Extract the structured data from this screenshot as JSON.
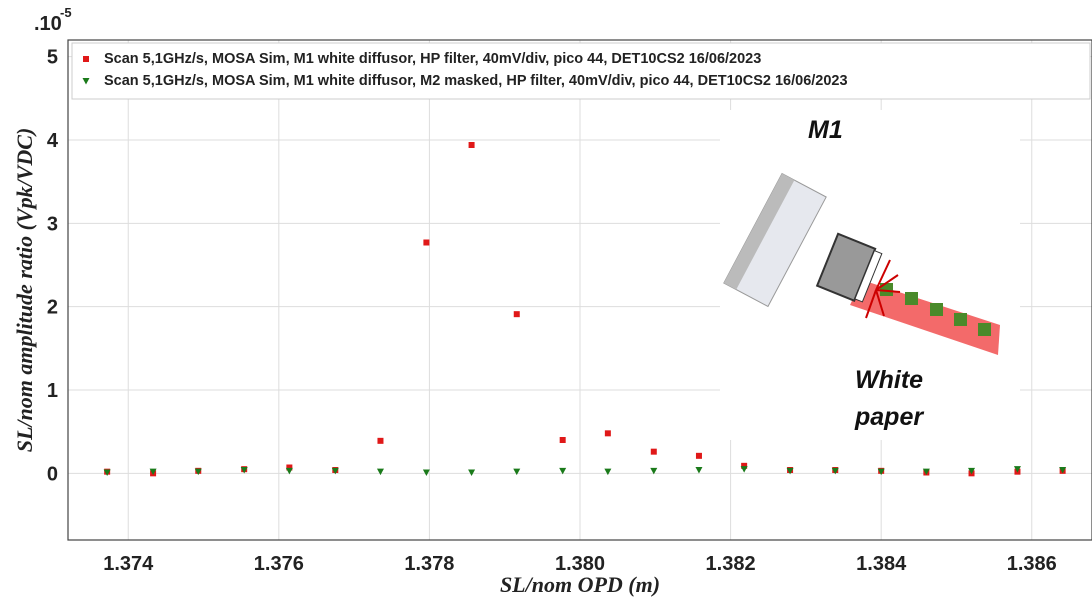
{
  "chart_data": {
    "type": "scatter",
    "xlabel": "SL/nom OPD (m)",
    "ylabel": "SL/nom amplitude ratio (Vpk/VDC)",
    "y_scale_label": ".10",
    "y_scale_exponent": "-5",
    "annotations": [
      "M1",
      "White",
      "paper"
    ],
    "xlim": [
      1.3732,
      1.3868
    ],
    "ylim": [
      -0.8,
      5.2
    ],
    "xticks": [
      1.374,
      1.376,
      1.378,
      {
        "value": 1.38,
        "label": "1.380"
      },
      1.382,
      1.384,
      1.386
    ],
    "yticks": [
      0,
      1,
      2,
      3,
      4,
      5
    ],
    "grid": true,
    "legend": "upper left",
    "x": [
      1.37372,
      1.37433,
      1.37493,
      1.37554,
      1.37614,
      1.37675,
      1.37735,
      1.37796,
      1.37856,
      1.37916,
      1.37977,
      1.38037,
      1.38098,
      1.38158,
      1.38218,
      1.38279,
      1.38339,
      1.384,
      1.3846,
      1.3852,
      1.38581,
      1.38641
    ],
    "series": [
      {
        "name": "Scan 5,1GHz/s, MOSA Sim, M1 white diffusor, HP filter, 40mV/div, pico 44, DET10CS2 16/06/2023",
        "color": "#e01818",
        "marker": "square",
        "values": [
          0.02,
          0.0,
          0.03,
          0.05,
          0.07,
          0.04,
          0.39,
          2.77,
          3.94,
          1.91,
          0.4,
          0.48,
          0.26,
          0.21,
          0.09,
          0.04,
          0.04,
          0.03,
          0.01,
          0.0,
          0.02,
          0.03
        ]
      },
      {
        "name": "Scan 5,1GHz/s, MOSA Sim, M1 white diffusor, M2 masked, HP filter, 40mV/div, pico 44, DET10CS2 16/06/2023",
        "color": "#1a7a1a",
        "marker": "triangle",
        "values": [
          0.01,
          0.02,
          0.02,
          0.04,
          0.03,
          0.03,
          0.02,
          0.01,
          0.01,
          0.02,
          0.03,
          0.02,
          0.03,
          0.04,
          0.05,
          0.03,
          0.03,
          0.02,
          0.02,
          0.03,
          0.05,
          0.04
        ]
      }
    ]
  }
}
